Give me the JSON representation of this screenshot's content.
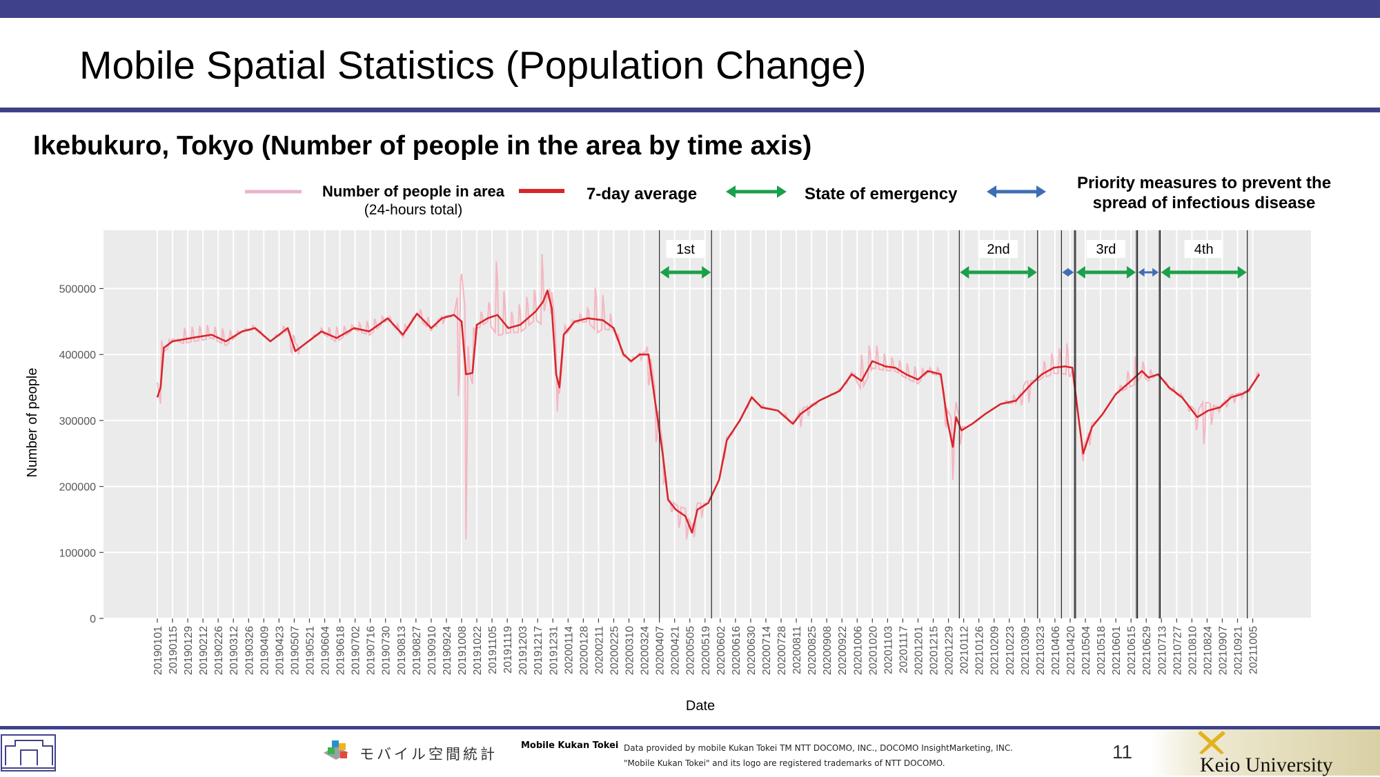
{
  "slide": {
    "title": "Mobile Spatial Statistics (Population Change)",
    "subtitle": "Ikebukuro, Tokyo (Number of people in the area by time axis)",
    "page_number": "11"
  },
  "legend": {
    "raw_line1": "Number of people in area",
    "raw_line2": "(24-hours total)",
    "avg": "7-day average",
    "emergency": "State of emergency",
    "priority_line1": "Priority measures to prevent the",
    "priority_line2": "spread of infectious disease"
  },
  "footer": {
    "mk_brand": "モバイル空間統計",
    "mk_label": "Mobile Kukan Tokei",
    "note_line1": "Data provided by mobile Kukan Tokei TM NTT DOCOMO, INC., DOCOMO InsightMarketing, INC.",
    "note_line2": "\"Mobile Kukan Tokei\" and its logo are registered trademarks of NTT DOCOMO.",
    "university": "Keio University"
  },
  "colors": {
    "header_bar": "#3f418a",
    "raw_series": "#f4b6c2",
    "avg_series": "#d7262b",
    "emergency_arrow": "#1a9f4b",
    "priority_arrow": "#3f6db5",
    "panel_bg": "#ebebeb"
  },
  "chart_data": {
    "type": "line",
    "xlabel": "Date",
    "ylabel": "Number of people",
    "ylim": [
      0,
      550000
    ],
    "yticks": [
      0,
      100000,
      200000,
      300000,
      400000,
      500000
    ],
    "x_start": "2019-01-01",
    "x_end": "2021-10-11",
    "x_ticks": [
      "20190101",
      "20190115",
      "20190129",
      "20190212",
      "20190226",
      "20190312",
      "20190326",
      "20190409",
      "20190423",
      "20190507",
      "20190521",
      "20190604",
      "20190618",
      "20190702",
      "20190716",
      "20190730",
      "20190813",
      "20190827",
      "20190910",
      "20190924",
      "20191008",
      "20191022",
      "20191105",
      "20191119",
      "20191203",
      "20191217",
      "20191231",
      "20200114",
      "20200128",
      "20200211",
      "20200225",
      "20200310",
      "20200324",
      "20200407",
      "20200421",
      "20200505",
      "20200519",
      "20200602",
      "20200616",
      "20200630",
      "20200714",
      "20200728",
      "20200811",
      "20200825",
      "20200908",
      "20200922",
      "20201006",
      "20201020",
      "20201103",
      "20201117",
      "20201201",
      "20201215",
      "20201229",
      "20210112",
      "20210126",
      "20210209",
      "20210223",
      "20210309",
      "20210323",
      "20210406",
      "20210420",
      "20210504",
      "20210518",
      "20210601",
      "20210615",
      "20210629",
      "20210713",
      "20210727",
      "20210810",
      "20210824",
      "20210907",
      "20210921",
      "20211005"
    ],
    "grid": true,
    "legend_position": "top",
    "series": [
      {
        "name": "Number of people in area (24-hours total)",
        "style": "light pink, daily values",
        "points": [
          [
            "2019-01-01",
            270000
          ],
          [
            "2019-01-04",
            420000
          ],
          [
            "2019-01-10",
            430000
          ],
          [
            "2019-01-15",
            410000
          ],
          [
            "2019-01-25",
            440000
          ],
          [
            "2019-02-15",
            445000
          ],
          [
            "2019-03-15",
            435000
          ],
          [
            "2019-04-01",
            445000
          ],
          [
            "2019-04-15",
            420000
          ],
          [
            "2019-05-01",
            450000
          ],
          [
            "2019-05-07",
            360000
          ],
          [
            "2019-05-12",
            410000
          ],
          [
            "2019-06-01",
            440000
          ],
          [
            "2019-07-01",
            445000
          ],
          [
            "2019-08-01",
            460000
          ],
          [
            "2019-08-14",
            440000
          ],
          [
            "2019-09-01",
            470000
          ],
          [
            "2019-09-15",
            440000
          ],
          [
            "2019-10-01",
            460000
          ],
          [
            "2019-10-12",
            120000
          ],
          [
            "2019-10-16",
            380000
          ],
          [
            "2019-10-20",
            460000
          ],
          [
            "2019-11-01",
            470000
          ],
          [
            "2019-11-10",
            550000
          ],
          [
            "2019-11-20",
            460000
          ],
          [
            "2019-12-15",
            500000
          ],
          [
            "2019-12-20",
            560000
          ],
          [
            "2019-12-28",
            500000
          ],
          [
            "2020-01-02",
            250000
          ],
          [
            "2020-01-08",
            440000
          ],
          [
            "2020-02-01",
            470000
          ],
          [
            "2020-02-10",
            510000
          ],
          [
            "2020-02-25",
            450000
          ],
          [
            "2020-03-07",
            400000
          ],
          [
            "2020-03-25",
            390000
          ],
          [
            "2020-04-07",
            230000
          ],
          [
            "2020-04-20",
            150000
          ],
          [
            "2020-05-06",
            110000
          ],
          [
            "2020-05-20",
            170000
          ],
          [
            "2020-06-01",
            210000
          ],
          [
            "2020-06-10",
            270000
          ],
          [
            "2020-07-01",
            330000
          ],
          [
            "2020-08-01",
            310000
          ],
          [
            "2020-08-15",
            290000
          ],
          [
            "2020-09-01",
            330000
          ],
          [
            "2020-10-01",
            360000
          ],
          [
            "2020-10-10",
            400000
          ],
          [
            "2020-10-20",
            420000
          ],
          [
            "2020-11-01",
            400000
          ],
          [
            "2020-12-01",
            380000
          ],
          [
            "2020-12-22",
            380000
          ],
          [
            "2020-12-31",
            190000
          ],
          [
            "2021-01-06",
            250000
          ],
          [
            "2021-01-15",
            290000
          ],
          [
            "2021-02-01",
            310000
          ],
          [
            "2021-03-01",
            340000
          ],
          [
            "2021-03-10",
            310000
          ],
          [
            "2021-03-22",
            380000
          ],
          [
            "2021-04-01",
            400000
          ],
          [
            "2021-04-20",
            420000
          ],
          [
            "2021-04-28",
            300000
          ],
          [
            "2021-05-02",
            230000
          ],
          [
            "2021-05-15",
            300000
          ],
          [
            "2021-06-01",
            340000
          ],
          [
            "2021-06-20",
            400000
          ],
          [
            "2021-07-01",
            380000
          ],
          [
            "2021-08-01",
            340000
          ],
          [
            "2021-08-20",
            260000
          ],
          [
            "2021-09-01",
            310000
          ],
          [
            "2021-10-01",
            340000
          ],
          [
            "2021-10-11",
            380000
          ]
        ]
      },
      {
        "name": "7-day average",
        "style": "red",
        "points": [
          [
            "2019-01-01",
            335000
          ],
          [
            "2019-01-04",
            350000
          ],
          [
            "2019-01-07",
            410000
          ],
          [
            "2019-01-15",
            420000
          ],
          [
            "2019-02-01",
            425000
          ],
          [
            "2019-02-20",
            430000
          ],
          [
            "2019-03-05",
            420000
          ],
          [
            "2019-03-20",
            435000
          ],
          [
            "2019-04-01",
            440000
          ],
          [
            "2019-04-15",
            420000
          ],
          [
            "2019-05-01",
            440000
          ],
          [
            "2019-05-08",
            405000
          ],
          [
            "2019-05-20",
            420000
          ],
          [
            "2019-06-01",
            435000
          ],
          [
            "2019-06-15",
            425000
          ],
          [
            "2019-07-01",
            440000
          ],
          [
            "2019-07-15",
            435000
          ],
          [
            "2019-08-01",
            455000
          ],
          [
            "2019-08-15",
            430000
          ],
          [
            "2019-08-28",
            462000
          ],
          [
            "2019-09-10",
            440000
          ],
          [
            "2019-09-20",
            455000
          ],
          [
            "2019-10-01",
            460000
          ],
          [
            "2019-10-08",
            450000
          ],
          [
            "2019-10-12",
            370000
          ],
          [
            "2019-10-18",
            372000
          ],
          [
            "2019-10-22",
            445000
          ],
          [
            "2019-11-01",
            455000
          ],
          [
            "2019-11-10",
            460000
          ],
          [
            "2019-11-20",
            440000
          ],
          [
            "2019-12-01",
            445000
          ],
          [
            "2019-12-15",
            465000
          ],
          [
            "2019-12-22",
            480000
          ],
          [
            "2019-12-26",
            497000
          ],
          [
            "2019-12-30",
            470000
          ],
          [
            "2020-01-03",
            370000
          ],
          [
            "2020-01-06",
            350000
          ],
          [
            "2020-01-10",
            430000
          ],
          [
            "2020-01-20",
            450000
          ],
          [
            "2020-02-01",
            455000
          ],
          [
            "2020-02-15",
            452000
          ],
          [
            "2020-02-25",
            440000
          ],
          [
            "2020-03-05",
            400000
          ],
          [
            "2020-03-12",
            390000
          ],
          [
            "2020-03-20",
            400000
          ],
          [
            "2020-03-28",
            400000
          ],
          [
            "2020-04-03",
            330000
          ],
          [
            "2020-04-10",
            250000
          ],
          [
            "2020-04-15",
            180000
          ],
          [
            "2020-04-22",
            165000
          ],
          [
            "2020-05-01",
            155000
          ],
          [
            "2020-05-07",
            130000
          ],
          [
            "2020-05-12",
            165000
          ],
          [
            "2020-05-22",
            175000
          ],
          [
            "2020-06-01",
            210000
          ],
          [
            "2020-06-08",
            270000
          ],
          [
            "2020-06-20",
            300000
          ],
          [
            "2020-07-01",
            335000
          ],
          [
            "2020-07-10",
            320000
          ],
          [
            "2020-07-25",
            315000
          ],
          [
            "2020-08-08",
            295000
          ],
          [
            "2020-08-15",
            310000
          ],
          [
            "2020-09-01",
            330000
          ],
          [
            "2020-09-20",
            345000
          ],
          [
            "2020-10-01",
            370000
          ],
          [
            "2020-10-10",
            360000
          ],
          [
            "2020-10-20",
            390000
          ],
          [
            "2020-11-01",
            382000
          ],
          [
            "2020-11-10",
            380000
          ],
          [
            "2020-11-20",
            370000
          ],
          [
            "2020-12-01",
            362000
          ],
          [
            "2020-12-10",
            375000
          ],
          [
            "2020-12-22",
            370000
          ],
          [
            "2020-12-28",
            300000
          ],
          [
            "2021-01-02",
            260000
          ],
          [
            "2021-01-05",
            305000
          ],
          [
            "2021-01-10",
            285000
          ],
          [
            "2021-01-20",
            295000
          ],
          [
            "2021-02-01",
            310000
          ],
          [
            "2021-02-15",
            325000
          ],
          [
            "2021-03-01",
            330000
          ],
          [
            "2021-03-15",
            355000
          ],
          [
            "2021-03-25",
            370000
          ],
          [
            "2021-04-05",
            380000
          ],
          [
            "2021-04-15",
            382000
          ],
          [
            "2021-04-22",
            380000
          ],
          [
            "2021-04-28",
            300000
          ],
          [
            "2021-05-02",
            250000
          ],
          [
            "2021-05-10",
            290000
          ],
          [
            "2021-05-20",
            310000
          ],
          [
            "2021-06-01",
            340000
          ],
          [
            "2021-06-15",
            360000
          ],
          [
            "2021-06-25",
            375000
          ],
          [
            "2021-07-01",
            365000
          ],
          [
            "2021-07-10",
            370000
          ],
          [
            "2021-07-20",
            350000
          ],
          [
            "2021-08-01",
            335000
          ],
          [
            "2021-08-15",
            305000
          ],
          [
            "2021-08-25",
            315000
          ],
          [
            "2021-09-05",
            320000
          ],
          [
            "2021-09-15",
            335000
          ],
          [
            "2021-09-25",
            340000
          ],
          [
            "2021-10-01",
            345000
          ],
          [
            "2021-10-11",
            370000
          ]
        ]
      }
    ],
    "annotations": [
      {
        "label": "1st",
        "kind": "State of emergency",
        "start": "2020-04-07",
        "end": "2020-05-25"
      },
      {
        "label": "2nd",
        "kind": "State of emergency",
        "start": "2021-01-08",
        "end": "2021-03-21"
      },
      {
        "label": "",
        "kind": "Priority measures to prevent the spread of infectious disease",
        "start": "2021-04-12",
        "end": "2021-04-24"
      },
      {
        "label": "3rd",
        "kind": "State of emergency",
        "start": "2021-04-25",
        "end": "2021-06-20"
      },
      {
        "label": "",
        "kind": "Priority measures to prevent the spread of infectious disease",
        "start": "2021-06-21",
        "end": "2021-07-11"
      },
      {
        "label": "4th",
        "kind": "State of emergency",
        "start": "2021-07-12",
        "end": "2021-09-30"
      }
    ]
  }
}
